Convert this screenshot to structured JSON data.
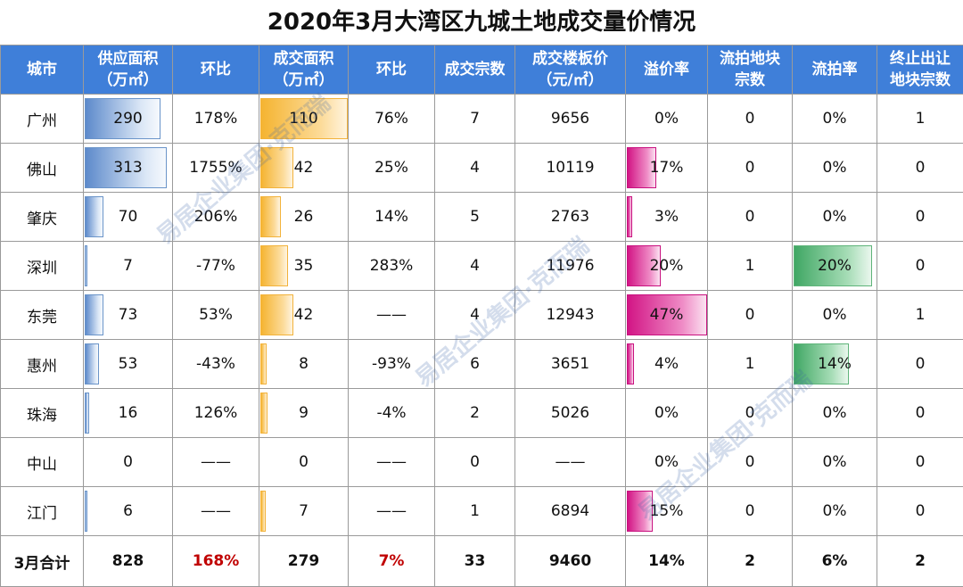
{
  "title": "2020年3月大湾区九城土地成交量价情况",
  "colors": {
    "header_bg": "#3f7fd9",
    "supply_bar": "#5d8acb",
    "deal_bar": "#f5b431",
    "premium_bar": "#d21585",
    "fail_bar": "#40a764",
    "highlight_text": "#c00000"
  },
  "headers": [
    [
      "城市",
      ""
    ],
    [
      "供应面积",
      "（万㎡）"
    ],
    [
      "环比",
      ""
    ],
    [
      "成交面积",
      "（万㎡）"
    ],
    [
      "环比",
      ""
    ],
    [
      "成交宗数",
      ""
    ],
    [
      "成交楼板价",
      "（元/㎡）"
    ],
    [
      "溢价率",
      ""
    ],
    [
      "流拍地块",
      "宗数"
    ],
    [
      "流拍率",
      ""
    ],
    [
      "终止出让",
      "地块宗数"
    ]
  ],
  "rows": [
    {
      "city": "广州",
      "supply": "290",
      "supply_mom": "178%",
      "deal": "110",
      "deal_mom": "76%",
      "count": "7",
      "price": "9656",
      "premium": "0%",
      "failed": "0",
      "fail_rate": "0%",
      "terminated": "1"
    },
    {
      "city": "佛山",
      "supply": "313",
      "supply_mom": "1755%",
      "deal": "42",
      "deal_mom": "25%",
      "count": "4",
      "price": "10119",
      "premium": "17%",
      "failed": "0",
      "fail_rate": "0%",
      "terminated": "0"
    },
    {
      "city": "肇庆",
      "supply": "70",
      "supply_mom": "206%",
      "deal": "26",
      "deal_mom": "14%",
      "count": "5",
      "price": "2763",
      "premium": "3%",
      "failed": "0",
      "fail_rate": "0%",
      "terminated": "0"
    },
    {
      "city": "深圳",
      "supply": "7",
      "supply_mom": "-77%",
      "deal": "35",
      "deal_mom": "283%",
      "count": "4",
      "price": "11976",
      "premium": "20%",
      "failed": "1",
      "fail_rate": "20%",
      "terminated": "0"
    },
    {
      "city": "东莞",
      "supply": "73",
      "supply_mom": "53%",
      "deal": "42",
      "deal_mom": "——",
      "count": "4",
      "price": "12943",
      "premium": "47%",
      "failed": "0",
      "fail_rate": "0%",
      "terminated": "1"
    },
    {
      "city": "惠州",
      "supply": "53",
      "supply_mom": "-43%",
      "deal": "8",
      "deal_mom": "-93%",
      "count": "6",
      "price": "3651",
      "premium": "4%",
      "failed": "1",
      "fail_rate": "14%",
      "terminated": "0"
    },
    {
      "city": "珠海",
      "supply": "16",
      "supply_mom": "126%",
      "deal": "9",
      "deal_mom": "-4%",
      "count": "2",
      "price": "5026",
      "premium": "0%",
      "failed": "0",
      "fail_rate": "0%",
      "terminated": "0"
    },
    {
      "city": "中山",
      "supply": "0",
      "supply_mom": "——",
      "deal": "0",
      "deal_mom": "——",
      "count": "0",
      "price": "——",
      "premium": "0%",
      "failed": "0",
      "fail_rate": "0%",
      "terminated": "0"
    },
    {
      "city": "江门",
      "supply": "6",
      "supply_mom": "——",
      "deal": "7",
      "deal_mom": "——",
      "count": "1",
      "price": "6894",
      "premium": "15%",
      "failed": "0",
      "fail_rate": "0%",
      "terminated": "0"
    }
  ],
  "bars": {
    "supply": [
      290,
      313,
      70,
      7,
      73,
      53,
      16,
      0,
      6
    ],
    "deal": [
      110,
      42,
      26,
      35,
      42,
      8,
      9,
      0,
      7
    ],
    "premium": [
      0,
      17,
      3,
      20,
      47,
      4,
      0,
      0,
      15
    ],
    "fail_rate": [
      0,
      0,
      0,
      20,
      0,
      14,
      0,
      0,
      0
    ]
  },
  "total": {
    "city": "3月合计",
    "supply": "828",
    "supply_mom": "168%",
    "deal": "279",
    "deal_mom": "7%",
    "count": "33",
    "price": "9460",
    "premium": "14%",
    "failed": "2",
    "fail_rate": "6%",
    "terminated": "2"
  }
}
